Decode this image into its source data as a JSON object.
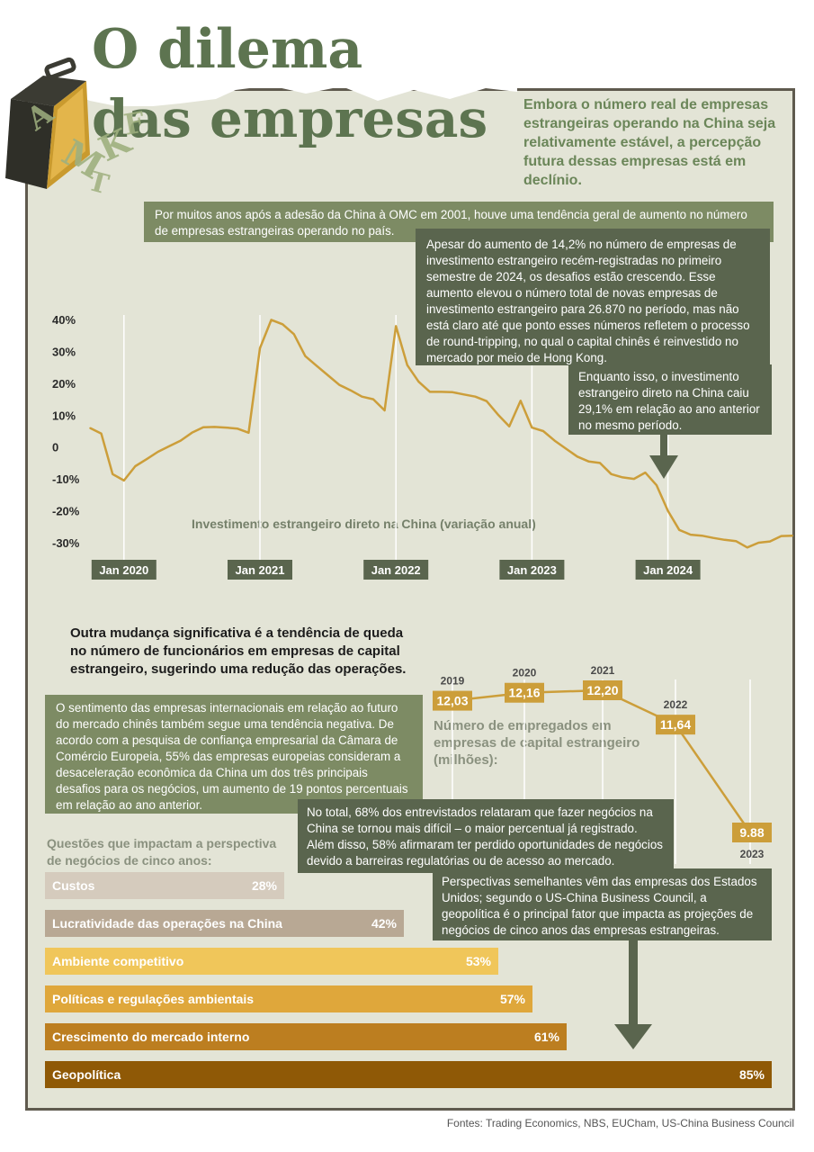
{
  "title_line1": "O dilema",
  "title_line2": "das empresas",
  "intro": "Embora o número real de empresas estrangeiras operando na China seja relativamente estável, a percepção futura dessas empresas está em declínio.",
  "note_wto": "Por muitos anos após a adesão da China à OMC em 2001, houve uma tendência geral de aumento no número de empresas estrangeiras operando no país.",
  "note_increase": "Apesar do aumento de 14,2% no número de empresas de investimento estrangeiro recém-registradas no primeiro semestre de 2024, os desafios estão crescendo. Esse aumento elevou o número total de novas empresas de investimento estrangeiro para 26.870 no período, mas não está claro até que ponto esses números refletem o processo de round-tripping, no qual o capital chinês é reinvestido no mercado por meio de Hong Kong.",
  "note_fdi": "Enquanto isso, o investimento estrangeiro direto na China caiu 29,1% em relação ao ano anterior no mesmo período.",
  "employees_note": "Outra mudança significativa é a tendência de queda no número de funcionários em empresas de capital estrangeiro, sugerindo uma redução das operações.",
  "sentiment_note": "O sentimento das empresas internacionais em relação ao futuro do mercado chinês também segue uma tendência negativa. De acordo com a pesquisa de confiança empresarial da Câmara de Comércio Europeia, 55% das empresas europeias consideram a desaceleração econômica da China um dos três principais desafios para os negócios, um aumento de 19 pontos percentuais em relação ao ano anterior.",
  "difficulty_note": "No total, 68% dos entrevistados relataram que fazer negócios na China se tornou mais difícil – o maior percentual já registrado. Além disso, 58% afirmaram ter perdido oportunidades de negócios devido a barreiras regulatórias ou de acesso ao mercado.",
  "us_note": "Perspectivas semelhantes vêm das empresas dos Estados Unidos; segundo o US-China Business Council, a geopolítica é o principal fator que impacta as projeções de negócios de cinco anos das empresas estrangeiras.",
  "source": "Fontes: Trading Economics, NBS, EUCham, US-China Business Council",
  "colors": {
    "title_green": "#5d7450",
    "panel_bg": "#e3e4d6",
    "line": "#cc9e3a",
    "box_dark": "#5a654e",
    "box_mid": "#7d8b64"
  },
  "chart_data": [
    {
      "type": "line",
      "ylabel": "",
      "xlabel": "",
      "series_label": "Investimento estrangeiro direto na China (variação anual)",
      "ylim": [
        -30,
        40
      ],
      "yticks": [
        "40%",
        "30%",
        "20%",
        "10%",
        "0",
        "-10%",
        "-20%",
        "-30%"
      ],
      "ytick_values": [
        40,
        30,
        20,
        10,
        0,
        -10,
        -20,
        -30
      ],
      "xticks": [
        "Jan 2020",
        "Jan 2021",
        "Jan 2022",
        "Jan 2023",
        "Jan 2024"
      ],
      "grid": "vertical",
      "x": [
        "2019-10",
        "2019-11",
        "2019-12",
        "2020-01",
        "2020-02",
        "2020-03",
        "2020-04",
        "2020-05",
        "2020-06",
        "2020-07",
        "2020-08",
        "2020-09",
        "2020-10",
        "2020-11",
        "2020-12",
        "2021-01",
        "2021-02",
        "2021-03",
        "2021-04",
        "2021-05",
        "2021-06",
        "2021-07",
        "2021-08",
        "2021-09",
        "2021-10",
        "2021-11",
        "2021-12",
        "2022-01",
        "2022-02",
        "2022-03",
        "2022-04",
        "2022-05",
        "2022-06",
        "2022-07",
        "2022-08",
        "2022-09",
        "2022-10",
        "2022-11",
        "2022-12",
        "2023-01",
        "2023-02",
        "2023-03",
        "2023-04",
        "2023-05",
        "2023-06",
        "2023-07",
        "2023-08",
        "2023-09",
        "2023-10",
        "2023-11",
        "2023-12",
        "2024-01",
        "2024-02",
        "2024-03",
        "2024-04",
        "2024-05",
        "2024-06",
        "2024-07",
        "2024-08",
        "2024-09",
        "2024-10",
        "2024-11",
        "2024-12"
      ],
      "values": [
        6.0,
        4.2,
        -8.5,
        -10.5,
        -6.0,
        -3.8,
        -1.5,
        0.3,
        2.0,
        4.5,
        6.2,
        6.3,
        6.1,
        5.8,
        4.5,
        31.0,
        39.9,
        38.5,
        35.4,
        28.5,
        25.5,
        22.5,
        19.5,
        17.8,
        15.8,
        15.0,
        11.5,
        37.9,
        25.7,
        20.5,
        17.3,
        17.3,
        17.2,
        16.5,
        15.8,
        14.4,
        10.2,
        6.5,
        14.5,
        6.1,
        5.0,
        2.0,
        -0.5,
        -3.0,
        -4.5,
        -5.0,
        -8.5,
        -9.5,
        -10.0,
        -8.0,
        -12.0,
        -20.0,
        -26.0,
        -27.5,
        -27.8,
        -28.5,
        -29.1,
        -29.5,
        -31.5,
        -30.0,
        -29.6,
        -27.9,
        -27.8
      ]
    },
    {
      "type": "line",
      "title": "Número de empregados em empresas de capital estrangeiro (milhões):",
      "categories": [
        "2019",
        "2020",
        "2021",
        "2022",
        "2023"
      ],
      "values": [
        12.03,
        12.16,
        12.2,
        11.64,
        9.88
      ],
      "value_labels": [
        "12,03",
        "12,16",
        "12,20",
        "11,64",
        "9.88"
      ]
    },
    {
      "type": "bar",
      "title": "Questões que impactam a perspectiva de negócios de cinco anos:",
      "categories": [
        "Custos",
        "Lucratividade das operações na China",
        "Ambiente competitivo",
        "Políticas e regulações ambientais",
        "Crescimento do mercado interno",
        "Geopolítica"
      ],
      "values": [
        28,
        42,
        53,
        57,
        61,
        85
      ],
      "value_labels": [
        "28%",
        "42%",
        "53%",
        "57%",
        "61%",
        "85%"
      ],
      "colors": [
        "#d5cbbd",
        "#b8a894",
        "#f0c65a",
        "#dfa73b",
        "#bc7e20",
        "#8f5906"
      ]
    }
  ]
}
